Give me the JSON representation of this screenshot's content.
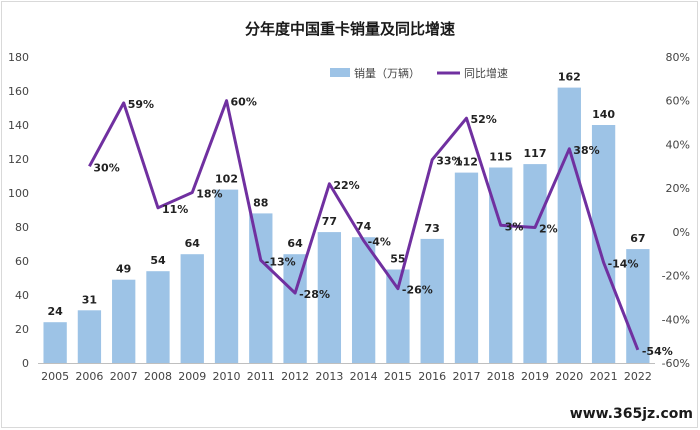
{
  "chart_data": {
    "type": "bar",
    "title": "分年度中国重卡销量及同比增速",
    "categories": [
      "2005",
      "2006",
      "2007",
      "2008",
      "2009",
      "2010",
      "2011",
      "2012",
      "2013",
      "2014",
      "2015",
      "2016",
      "2017",
      "2018",
      "2019",
      "2020",
      "2021",
      "2022"
    ],
    "series": [
      {
        "name": "销量（万辆）",
        "type": "bar",
        "axis": "left",
        "color": "#9dc3e6",
        "values": [
          24,
          31,
          49,
          54,
          64,
          102,
          88,
          64,
          77,
          74,
          55,
          73,
          112,
          115,
          117,
          162,
          140,
          67
        ],
        "labels": [
          "24",
          "31",
          "49",
          "54",
          "64",
          "102",
          "88",
          "64",
          "77",
          "74",
          "55",
          "73",
          "112",
          "115",
          "117",
          "162",
          "140",
          "67"
        ]
      },
      {
        "name": "同比增速",
        "type": "line",
        "axis": "right",
        "color": "#7030a0",
        "values": [
          null,
          30,
          59,
          11,
          18,
          60,
          -13,
          -28,
          22,
          -4,
          -26,
          33,
          52,
          3,
          2,
          38,
          -14,
          -54
        ],
        "labels": [
          "",
          "30%",
          "59%",
          "11%",
          "18%",
          "60%",
          "-13%",
          "-28%",
          "22%",
          "-4%",
          "-26%",
          "33%",
          "52%",
          "3%",
          "2%",
          "38%",
          "-14%",
          "-54%"
        ]
      }
    ],
    "y_left": {
      "min": 0,
      "max": 180,
      "step": 20,
      "ticks": [
        "0",
        "20",
        "40",
        "60",
        "80",
        "100",
        "120",
        "140",
        "160",
        "180"
      ]
    },
    "y_right": {
      "min": -60,
      "max": 80,
      "step": 20,
      "ticks": [
        "-60%",
        "-40%",
        "-20%",
        "0%",
        "20%",
        "40%",
        "60%",
        "80%"
      ]
    },
    "legend_position": "top-right",
    "grid": false
  },
  "watermark": "www.365jz.com"
}
